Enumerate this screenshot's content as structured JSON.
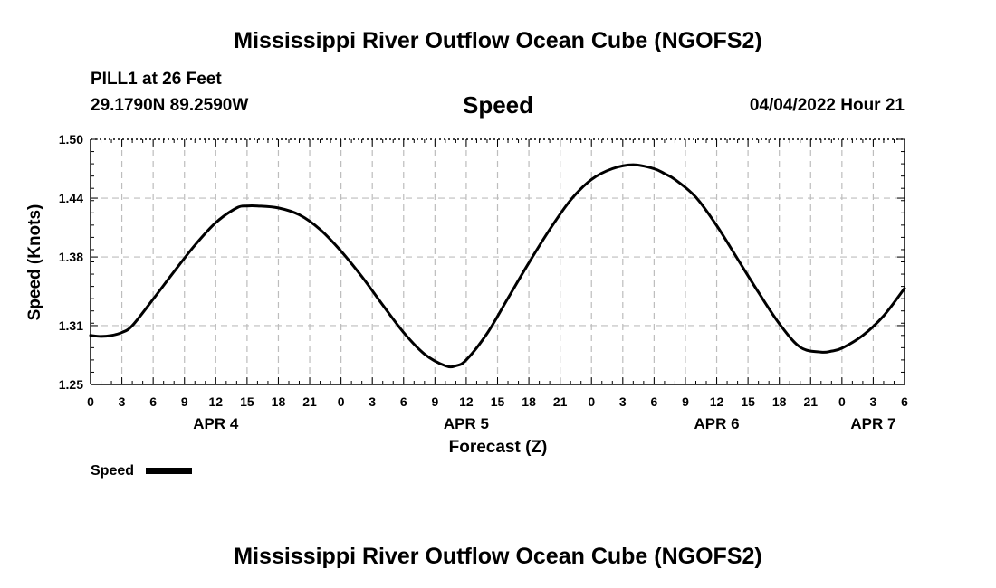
{
  "header": {
    "title": "Mississippi River Outflow Ocean Cube (NGOFS2)",
    "station": "PILL1 at 26 Feet",
    "coords": "29.1790N  89.2590W",
    "timestamp": "04/04/2022 Hour 21"
  },
  "footer": {
    "title": "Mississippi River Outflow Ocean Cube (NGOFS2)"
  },
  "chart_data": {
    "type": "line",
    "title": "Speed",
    "xlabel": "Forecast (Z)",
    "ylabel": "Speed (Knots)",
    "xlim": [
      0,
      78
    ],
    "ylim": [
      1.25,
      1.5
    ],
    "y_ticks": [
      1.25,
      1.31,
      1.38,
      1.44,
      1.5
    ],
    "x_tick_labels": [
      "0",
      "3",
      "6",
      "9",
      "12",
      "15",
      "18",
      "21",
      "0",
      "3",
      "6",
      "9",
      "12",
      "15",
      "18",
      "21",
      "0",
      "3",
      "6",
      "9",
      "12",
      "15",
      "18",
      "21",
      "0",
      "3",
      "6"
    ],
    "day_labels": [
      {
        "label": "APR 4",
        "hour": 12
      },
      {
        "label": "APR 5",
        "hour": 36
      },
      {
        "label": "APR 6",
        "hour": 60
      },
      {
        "label": "APR 7",
        "hour": 75
      }
    ],
    "grid": true,
    "legend": "bottom-left",
    "series": [
      {
        "name": "Speed",
        "color": "#000000",
        "x": [
          0,
          1,
          2,
          3,
          4,
          6,
          8,
          10,
          12,
          14,
          15,
          16,
          18,
          20,
          22,
          24,
          26,
          28,
          30,
          32,
          34,
          35,
          36,
          38,
          40,
          42,
          44,
          46,
          48,
          50,
          52,
          54,
          55,
          56,
          58,
          60,
          62,
          64,
          66,
          68,
          70,
          71,
          72,
          74,
          76,
          78
        ],
        "values": [
          1.3,
          1.299,
          1.3,
          1.303,
          1.31,
          1.337,
          1.365,
          1.392,
          1.415,
          1.43,
          1.432,
          1.432,
          1.43,
          1.423,
          1.408,
          1.386,
          1.36,
          1.331,
          1.303,
          1.281,
          1.269,
          1.269,
          1.275,
          1.302,
          1.338,
          1.374,
          1.408,
          1.438,
          1.459,
          1.47,
          1.474,
          1.47,
          1.465,
          1.459,
          1.441,
          1.412,
          1.378,
          1.344,
          1.312,
          1.288,
          1.283,
          1.284,
          1.287,
          1.3,
          1.32,
          1.348
        ]
      }
    ]
  }
}
